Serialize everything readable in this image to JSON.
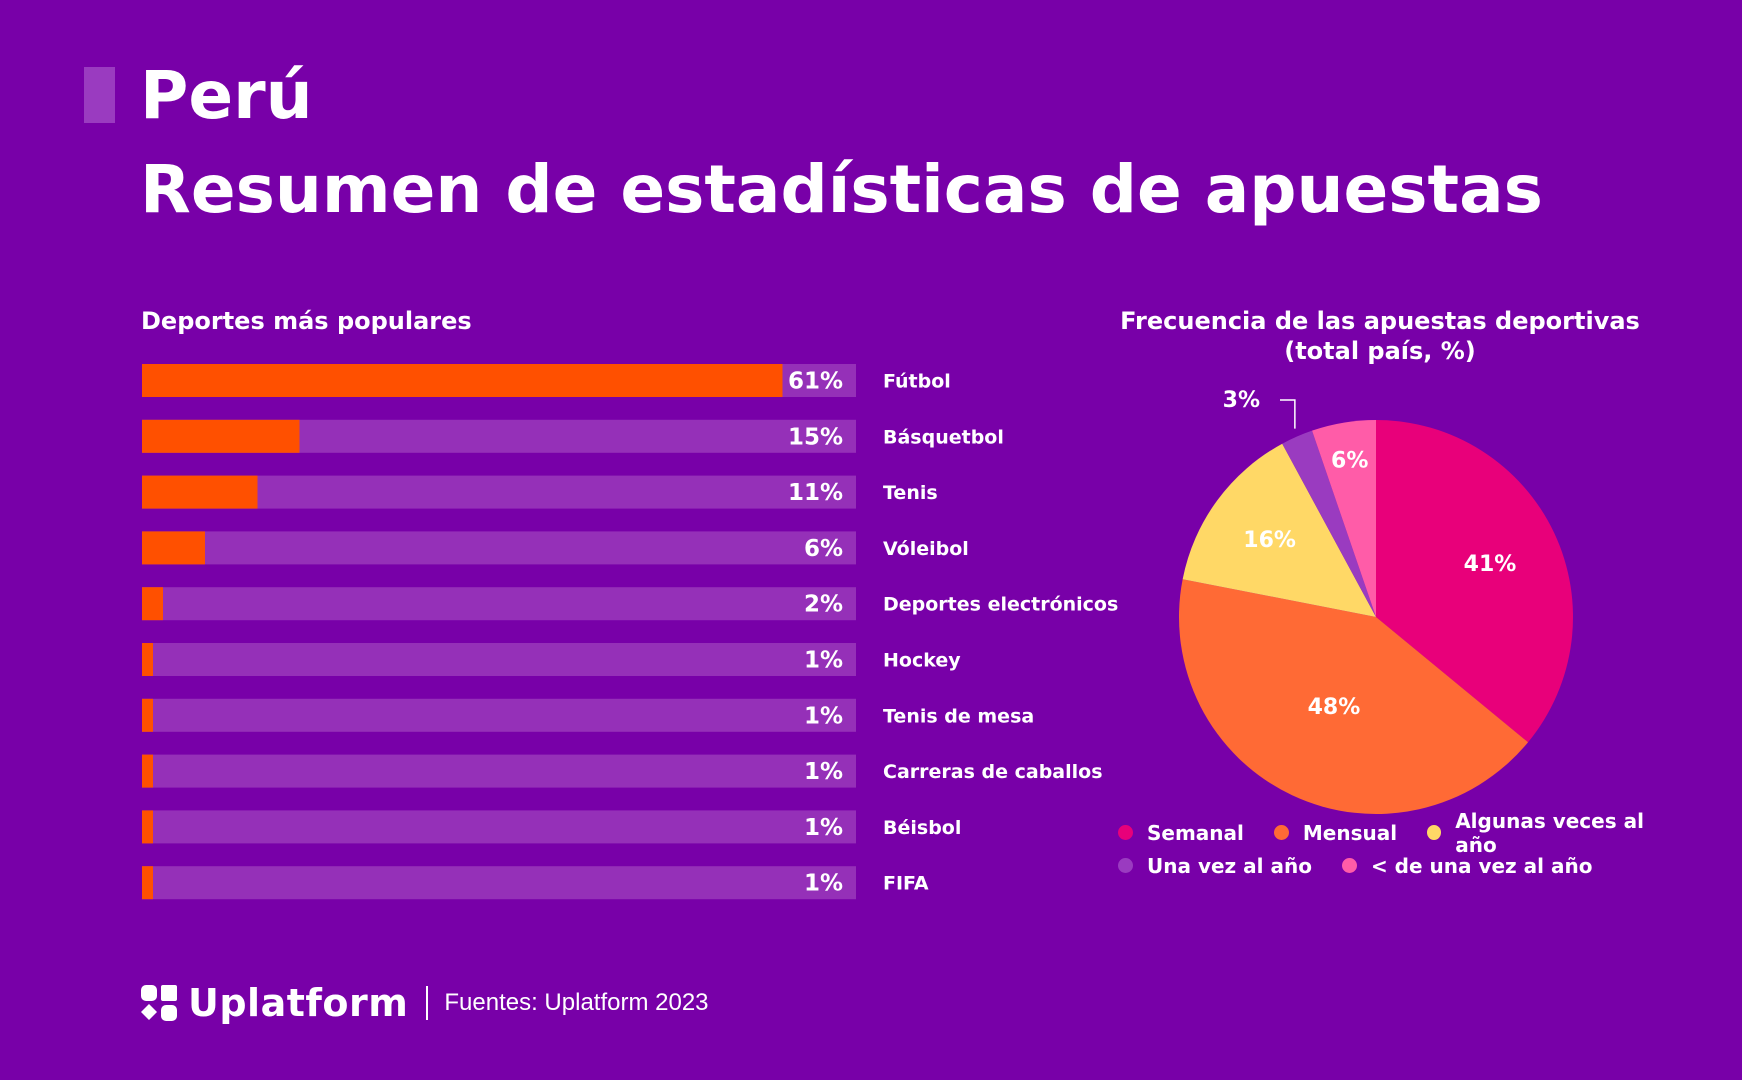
{
  "header": {
    "country": "Perú",
    "subtitle": "Resumen de estadísticas de apuestas"
  },
  "chart_data": [
    {
      "type": "bar",
      "orientation": "horizontal",
      "title": "Deportes más populares",
      "categories": [
        "Fútbol",
        "Básquetbol",
        "Tenis",
        "Vóleibol",
        "Deportes electrónicos",
        "Hockey",
        "Tenis de mesa",
        "Carreras de caballos",
        "Béisbol",
        "FIFA"
      ],
      "values": [
        61,
        15,
        11,
        6,
        2,
        1,
        1,
        1,
        1,
        1
      ],
      "labels": [
        "61%",
        "15%",
        "11%",
        "6%",
        "2%",
        "1%",
        "1%",
        "1%",
        "1%",
        "1%"
      ],
      "xlim": [
        0,
        68
      ],
      "unit": "%",
      "colors": {
        "bar": "#ff5000",
        "track": "#9530b8"
      }
    },
    {
      "type": "pie",
      "title": "Frecuencia de las apuestas deportivas",
      "subtitle": "(total país, %)",
      "categories": [
        "Semanal",
        "Mensual",
        "Algunas veces al año",
        "Una vez al año",
        "< de una vez al año"
      ],
      "values": [
        41,
        48,
        16,
        3,
        6
      ],
      "labels": [
        "41%",
        "48%",
        "16%",
        "3%",
        "6%"
      ],
      "colors": [
        "#e8007a",
        "#ff6a35",
        "#ffd866",
        "#9a3bc0",
        "#ff5ca8"
      ],
      "legend_position": "bottom"
    }
  ],
  "footer": {
    "brand": "Uplatform",
    "source": "Fuentes: Uplatform 2023"
  }
}
